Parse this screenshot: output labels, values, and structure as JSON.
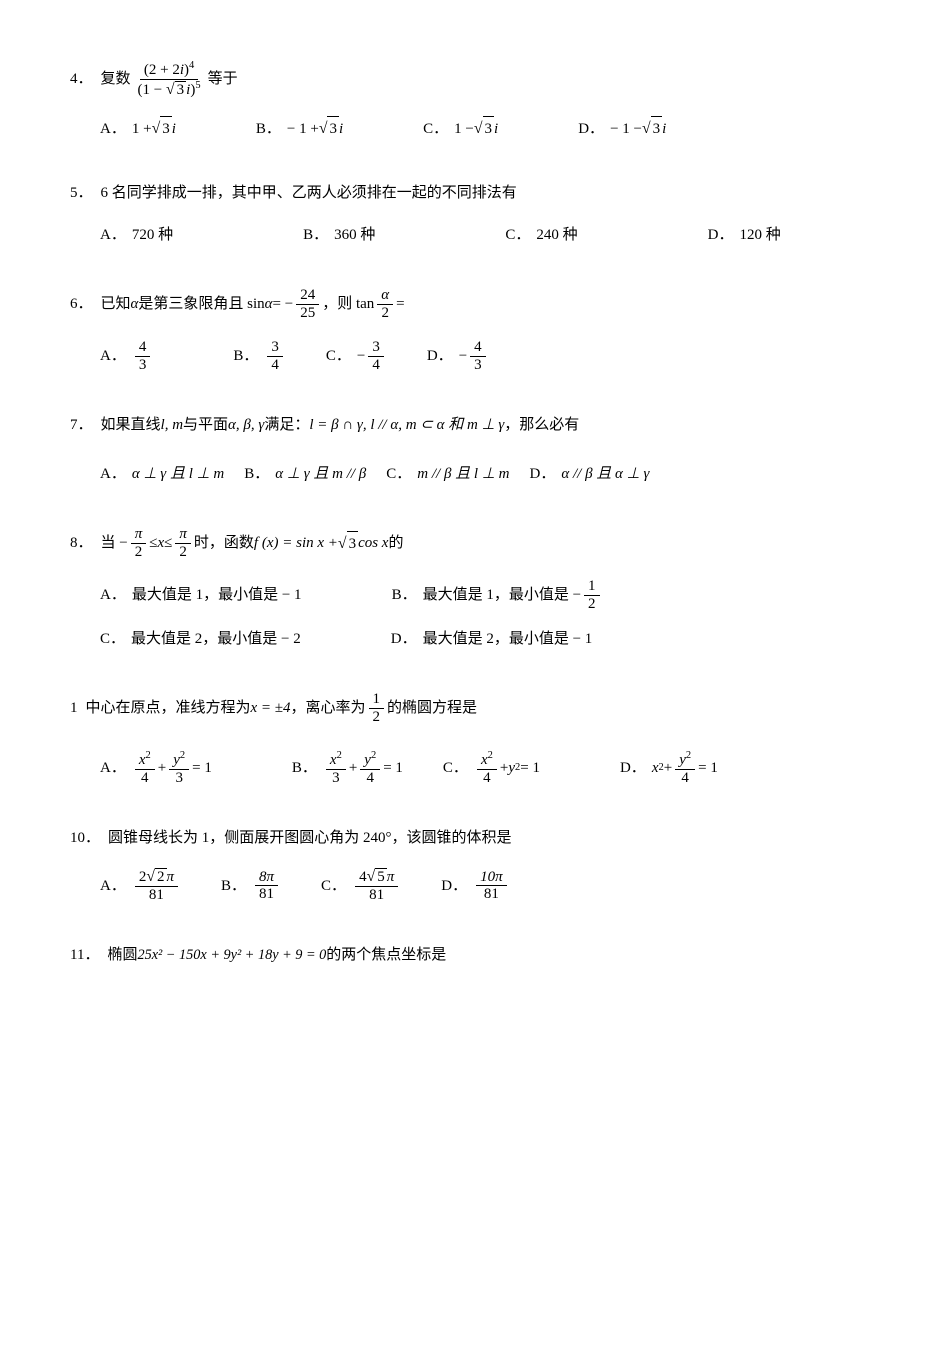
{
  "q4": {
    "num": "4．",
    "stem_prefix": "复数",
    "stem_suffix": "等于",
    "frac_num_a": "(2 + 2",
    "frac_num_b": ")",
    "frac_num_exp": "4",
    "frac_den_a": "(1 − ",
    "frac_den_b": ")",
    "frac_den_exp": "5",
    "sqrt3": "3",
    "i": "i",
    "choices": {
      "A": {
        "label": "A．",
        "prefix": "1 + ",
        "sqrt": "3",
        "suffix": "i"
      },
      "B": {
        "label": "B．",
        "prefix": "− 1 + ",
        "sqrt": "3",
        "suffix": "i"
      },
      "C": {
        "label": "C．",
        "prefix": "1 − ",
        "sqrt": "3",
        "suffix": "i"
      },
      "D": {
        "label": "D．",
        "prefix": "− 1 − ",
        "sqrt": "3",
        "suffix": "i"
      }
    }
  },
  "q5": {
    "num": "5．",
    "stem": "6 名同学排成一排，其中甲、乙两人必须排在一起的不同排法有",
    "choices": {
      "A": {
        "label": "A．",
        "text": "720 种"
      },
      "B": {
        "label": "B．",
        "text": "360 种"
      },
      "C": {
        "label": "C．",
        "text": "240 种"
      },
      "D": {
        "label": "D．",
        "text": "120 种"
      }
    }
  },
  "q6": {
    "num": "6．",
    "stem_a": "已知",
    "alpha": "α",
    "stem_b": "是第三象限角且 sin",
    "stem_c": " = −",
    "frac1_num": "24",
    "frac1_den": "25",
    "stem_d": "，则 tan",
    "frac2_num": "α",
    "frac2_den": "2",
    "stem_e": " =",
    "choices": {
      "A": {
        "label": "A．",
        "num": "4",
        "den": "3"
      },
      "B": {
        "label": "B．",
        "num": "3",
        "den": "4"
      },
      "C": {
        "label": "C．",
        "neg": "−",
        "num": "3",
        "den": "4"
      },
      "D": {
        "label": "D．",
        "neg": "−",
        "num": "4",
        "den": "3"
      }
    }
  },
  "q7": {
    "num": "7．",
    "stem_a": "如果直线",
    "lm": "l, m",
    "stem_b": "与平面",
    "aby": "α, β, γ",
    "stem_c": "满足：",
    "cond": "l = β ∩ γ, l // α, m ⊂ α 和 m ⊥ γ",
    "stem_d": "，那么必有",
    "choices": {
      "A": {
        "label": "A．",
        "text": "α ⊥ γ 且 l ⊥ m"
      },
      "B": {
        "label": "B．",
        "text": "α ⊥ γ 且 m // β"
      },
      "C": {
        "label": "C．",
        "text": "m // β 且 l ⊥ m"
      },
      "D": {
        "label": "D．",
        "text": "α // β 且 α ⊥ γ"
      }
    }
  },
  "q8": {
    "num": "8．",
    "stem_a": "当 −",
    "pi": "π",
    "two": "2",
    "le": " ≤ ",
    "x": "x",
    "stem_b": " 时，函数 ",
    "fx": "f (x) = sin x + ",
    "sqrt3": "3",
    "cosx": " cos x",
    "stem_c": " 的",
    "choices": {
      "A": {
        "label": "A．",
        "text": "最大值是 1，最小值是 − 1"
      },
      "B": {
        "label": "B．",
        "text_a": "最大值是 1，最小值是 −",
        "num": "1",
        "den": "2"
      },
      "C": {
        "label": "C．",
        "text": "最大值是 2，最小值是 − 2"
      },
      "D": {
        "label": "D．",
        "text": "最大值是 2，最小值是 − 1"
      }
    }
  },
  "q9": {
    "num": "1",
    "stem_a": "中心在原点，准线方程为 ",
    "xpm4": "x = ±4",
    "stem_b": "，离心率为",
    "den": "2",
    "stem_c": "的椭圆方程是",
    "choices": {
      "A": {
        "label": "A．",
        "xnum": "x",
        "xden": "4",
        "ynum": "y",
        "yden": "3"
      },
      "B": {
        "label": "B．",
        "xnum": "x",
        "xden": "3",
        "ynum": "y",
        "yden": "4"
      },
      "C": {
        "label": "C．",
        "type": "C",
        "xnum": "x",
        "xden": "4",
        "ytext": "y"
      },
      "D": {
        "label": "D．",
        "type": "D",
        "xtext": "x",
        "ynum": "y",
        "yden": "4"
      }
    },
    "eq1": " = 1",
    "plus": " + ",
    "sq": "2"
  },
  "q10": {
    "num": "10．",
    "stem": "圆锥母线长为 1，侧面展开图圆心角为 240°，该圆锥的体积是",
    "choices": {
      "A": {
        "label": "A．",
        "num_a": "2",
        "sqrt": "2",
        "num_b": "π",
        "den": "81"
      },
      "B": {
        "label": "B．",
        "num": "8π",
        "den": "81"
      },
      "C": {
        "label": "C．",
        "num_a": "4",
        "sqrt": "5",
        "num_b": "π",
        "den": "81"
      },
      "D": {
        "label": "D．",
        "num": "10π",
        "den": "81"
      }
    }
  },
  "q11": {
    "num": "11．",
    "stem_a": "椭圆 ",
    "expr": "25x² − 150x + 9y² + 18y + 9 = 0",
    "stem_b": " 的两个焦点坐标是"
  }
}
